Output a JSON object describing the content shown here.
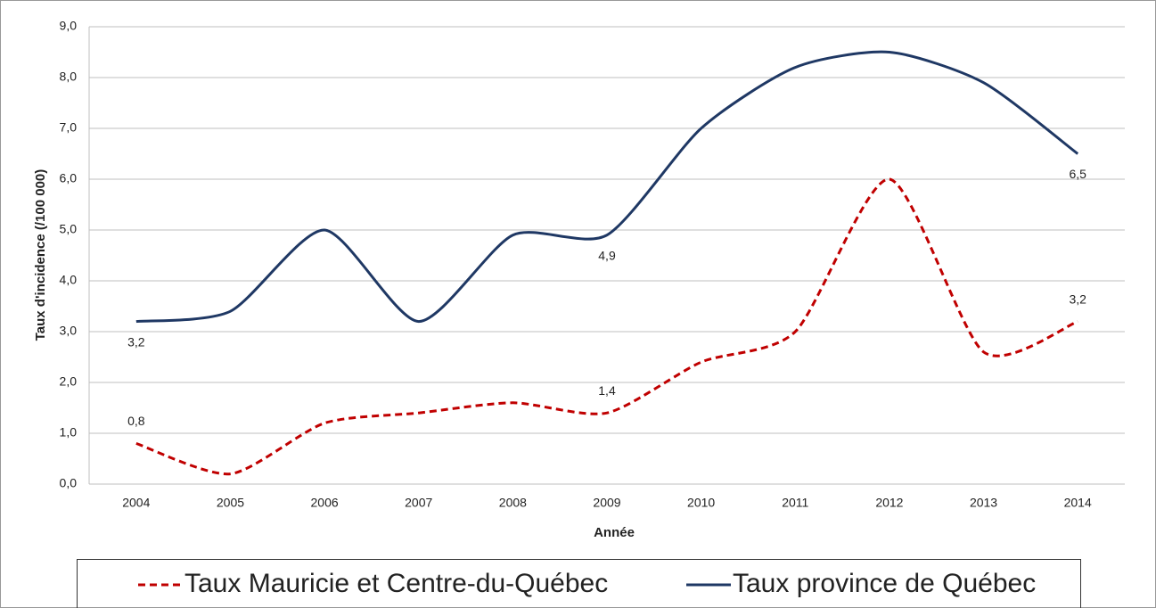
{
  "chart_data": {
    "type": "line",
    "xlabel": "Année",
    "ylabel": "Taux d'incidence (/100 000)",
    "categories": [
      "2004",
      "2005",
      "2006",
      "2007",
      "2008",
      "2009",
      "2010",
      "2011",
      "2012",
      "2013",
      "2014"
    ],
    "series": [
      {
        "name": "Taux Mauricie et Centre-du-Québec",
        "color": "#c00000",
        "dashed": true,
        "values": [
          0.8,
          0.2,
          1.2,
          1.4,
          1.6,
          1.4,
          2.4,
          3.0,
          6.0,
          2.6,
          3.2
        ],
        "value_labels": [
          "0,8",
          null,
          null,
          null,
          null,
          "1,4",
          null,
          null,
          null,
          null,
          "3,2"
        ]
      },
      {
        "name": "Taux province de Québec",
        "color": "#1f3864",
        "dashed": false,
        "values": [
          3.2,
          3.4,
          5.0,
          3.2,
          4.9,
          4.9,
          7.0,
          8.2,
          8.5,
          7.9,
          6.5
        ],
        "value_labels": [
          "3,2",
          null,
          null,
          null,
          null,
          "4,9",
          null,
          null,
          null,
          null,
          "6,5"
        ]
      }
    ],
    "ylim": [
      0,
      9
    ],
    "yticks": [
      {
        "value": 0,
        "label": "0,0"
      },
      {
        "value": 1,
        "label": "1,0"
      },
      {
        "value": 2,
        "label": "2,0"
      },
      {
        "value": 3,
        "label": "3,0"
      },
      {
        "value": 4,
        "label": "4,0"
      },
      {
        "value": 5,
        "label": "5,0"
      },
      {
        "value": 6,
        "label": "6,0"
      },
      {
        "value": 7,
        "label": "7,0"
      },
      {
        "value": 8,
        "label": "8,0"
      },
      {
        "value": 9,
        "label": "9,0"
      }
    ],
    "grid": true,
    "legend": "bottom"
  }
}
